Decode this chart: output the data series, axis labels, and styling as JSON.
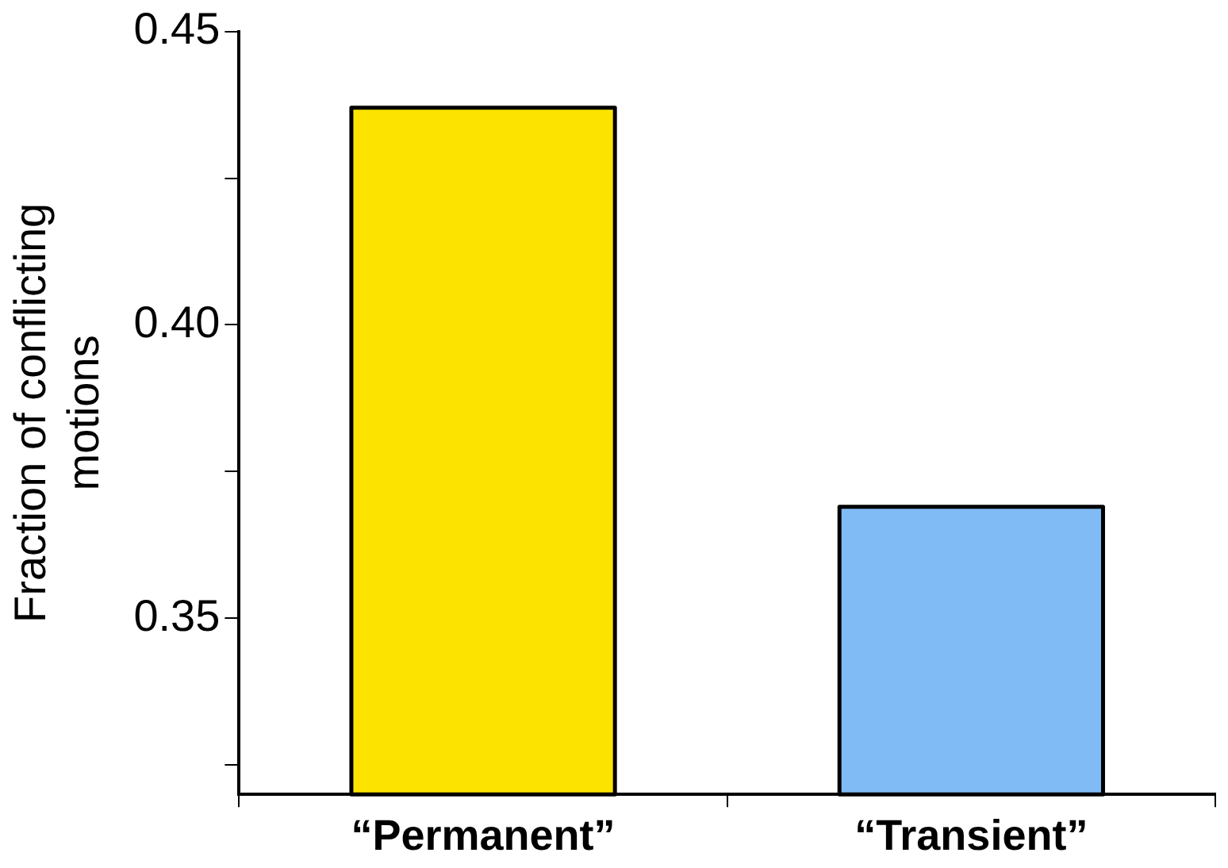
{
  "chart_data": {
    "type": "bar",
    "ylabel": "Fraction of conflicting motions",
    "categories": [
      "“Permanent”",
      "“Transient”"
    ],
    "values": [
      0.437,
      0.369
    ],
    "colors": [
      "#fde400",
      "#80bbf5"
    ],
    "ylim": [
      0.32,
      0.45
    ],
    "yticks": [
      {
        "value": 0.325,
        "label": null
      },
      0.35,
      {
        "value": 0.375,
        "label": null
      },
      {
        "value": 0.4,
        "label": "0.40"
      },
      {
        "value": 0.425,
        "label": null
      },
      0.45
    ],
    "grid": false,
    "legend": false
  }
}
